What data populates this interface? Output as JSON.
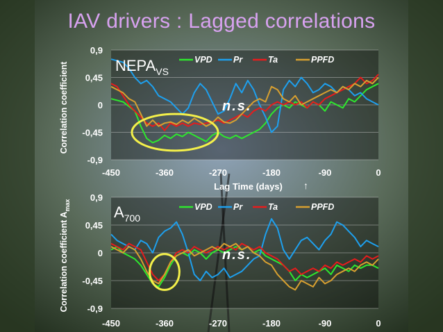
{
  "slide": {
    "title": "IAV drivers : Lagged correlations"
  },
  "colors": {
    "VPD": "#2ee82e",
    "Pr": "#1ea0ee",
    "Ta": "#e81c1c",
    "PPFD": "#d8a030",
    "title": "#d8a2f0",
    "annotation_ellipse": "#f4f04a",
    "text": "#ffffff"
  },
  "chart_data": [
    {
      "type": "line",
      "panel_label": "NEPA",
      "panel_label_sub": "VS",
      "ylabel": "Correlation coefficient",
      "xlabel": "Lag Time (days)",
      "xlabel_arrow": "↑",
      "annotation": "n.s.",
      "ylim": [
        -0.9,
        0.9
      ],
      "yticks": [
        0.9,
        0.45,
        0,
        -0.45,
        -0.9
      ],
      "ytick_labels": [
        "0,9",
        "0,45",
        "0",
        "-0,45",
        "-0,9"
      ],
      "xlim": [
        -450,
        0
      ],
      "xticks": [
        -450,
        -360,
        -270,
        -180,
        -90,
        0
      ],
      "xtick_labels": [
        "-450",
        "-360",
        "-270",
        "-180",
        "-90",
        "0"
      ],
      "grid": true,
      "legend_position": "top",
      "highlight": {
        "shape": "ellipse",
        "x_range": [
          -415,
          -270
        ],
        "y_range": [
          -0.75,
          -0.15
        ]
      },
      "series": [
        {
          "name": "VPD",
          "x": [
            -450,
            -430,
            -410,
            -400,
            -390,
            -380,
            -370,
            -360,
            -350,
            -340,
            -330,
            -320,
            -310,
            -300,
            -290,
            -280,
            -270,
            -260,
            -250,
            -240,
            -230,
            -220,
            -210,
            -200,
            -190,
            -180,
            -170,
            -160,
            -150,
            -140,
            -130,
            -120,
            -110,
            -100,
            -90,
            -80,
            -70,
            -60,
            -50,
            -40,
            -30,
            -20,
            -10,
            0
          ],
          "y": [
            0.1,
            0.05,
            -0.1,
            -0.35,
            -0.55,
            -0.62,
            -0.58,
            -0.5,
            -0.55,
            -0.48,
            -0.52,
            -0.45,
            -0.5,
            -0.55,
            -0.6,
            -0.5,
            -0.45,
            -0.52,
            -0.55,
            -0.5,
            -0.55,
            -0.5,
            -0.45,
            -0.4,
            -0.3,
            -0.15,
            -0.05,
            0,
            -0.05,
            0.05,
            0,
            -0.05,
            0.05,
            0,
            -0.1,
            0.05,
            0,
            -0.05,
            0.1,
            0.05,
            0.15,
            0.25,
            0.3,
            0.35
          ]
        },
        {
          "name": "Pr",
          "x": [
            -450,
            -430,
            -420,
            -410,
            -400,
            -390,
            -380,
            -370,
            -360,
            -350,
            -340,
            -330,
            -320,
            -310,
            -300,
            -290,
            -280,
            -270,
            -260,
            -250,
            -240,
            -230,
            -220,
            -210,
            -200,
            -190,
            -180,
            -170,
            -160,
            -150,
            -140,
            -130,
            -120,
            -110,
            -100,
            -90,
            -80,
            -70,
            -60,
            -50,
            -40,
            -30,
            -20,
            -10,
            0
          ],
          "y": [
            0.75,
            0.7,
            0.6,
            0.45,
            0.35,
            0.4,
            0.3,
            0.15,
            0.1,
            0.05,
            -0.05,
            -0.15,
            -0.05,
            0.2,
            0.35,
            0.25,
            0.05,
            -0.15,
            -0.1,
            0.1,
            0.35,
            0.2,
            0.4,
            0.25,
            0.0,
            -0.2,
            -0.45,
            -0.35,
            0.25,
            0.4,
            0.3,
            0.45,
            0.35,
            0.2,
            0.25,
            0.35,
            0.3,
            0.2,
            0.3,
            0.25,
            0.15,
            0.2,
            0.1,
            0.05,
            0.0
          ]
        },
        {
          "name": "Ta",
          "x": [
            -450,
            -440,
            -430,
            -420,
            -410,
            -400,
            -390,
            -380,
            -370,
            -360,
            -350,
            -340,
            -330,
            -320,
            -310,
            -300,
            -290,
            -280,
            -270,
            -260,
            -250,
            -240,
            -230,
            -220,
            -210,
            -200,
            -190,
            -180,
            -170,
            -160,
            -150,
            -140,
            -130,
            -120,
            -110,
            -100,
            -90,
            -80,
            -70,
            -60,
            -50,
            -40,
            -30,
            -20,
            -10,
            0
          ],
          "y": [
            0.35,
            0.3,
            0.15,
            0.0,
            -0.1,
            -0.2,
            -0.3,
            -0.35,
            -0.3,
            -0.42,
            -0.3,
            -0.35,
            -0.3,
            -0.35,
            -0.3,
            -0.32,
            -0.3,
            -0.28,
            -0.25,
            -0.3,
            -0.25,
            -0.2,
            -0.15,
            -0.2,
            -0.1,
            -0.05,
            -0.1,
            0.0,
            0.05,
            0.0,
            0.05,
            0.0,
            0.05,
            -0.05,
            0.05,
            0.0,
            0.1,
            0.15,
            0.2,
            0.25,
            0.3,
            0.35,
            0.45,
            0.35,
            0.4,
            0.5
          ]
        },
        {
          "name": "PPFD",
          "x": [
            -450,
            -440,
            -430,
            -420,
            -410,
            -400,
            -390,
            -380,
            -370,
            -360,
            -350,
            -340,
            -330,
            -320,
            -310,
            -300,
            -290,
            -280,
            -270,
            -260,
            -250,
            -240,
            -230,
            -220,
            -210,
            -200,
            -190,
            -180,
            -170,
            -160,
            -150,
            -140,
            -130,
            -120,
            -110,
            -100,
            -90,
            -80,
            -70,
            -60,
            -50,
            -40,
            -30,
            -20,
            -10,
            0
          ],
          "y": [
            0.3,
            0.25,
            0.2,
            0.1,
            0.05,
            -0.15,
            -0.35,
            -0.25,
            -0.35,
            -0.3,
            -0.28,
            -0.32,
            -0.25,
            -0.3,
            -0.22,
            -0.28,
            -0.35,
            -0.3,
            -0.2,
            -0.28,
            -0.3,
            -0.25,
            -0.15,
            -0.05,
            0.05,
            0.1,
            0.05,
            0.3,
            0.25,
            0.1,
            0.05,
            0.15,
            0.0,
            0.05,
            0.1,
            0.15,
            0.2,
            0.25,
            0.2,
            0.3,
            0.25,
            0.35,
            0.3,
            0.4,
            0.35,
            0.45
          ]
        }
      ]
    },
    {
      "type": "line",
      "panel_label": "A",
      "panel_label_sub": "700",
      "ylabel": "Correlation coefficient A",
      "ylabel_sub": "max",
      "annotation": "n.s.",
      "ylim": [
        -0.9,
        0.9
      ],
      "yticks": [
        0.9,
        0.45,
        0,
        -0.45,
        -0.9
      ],
      "ytick_labels": [
        "0,9",
        "0,45",
        "0",
        "-0,45",
        "-0,9"
      ],
      "xlim": [
        -450,
        0
      ],
      "xticks": [
        -450,
        -360,
        -270,
        -180,
        -90,
        0
      ],
      "xtick_labels": [
        "-450",
        "-360",
        "-270",
        "-180",
        "-90",
        "0"
      ],
      "grid": true,
      "legend_position": "top",
      "highlight": {
        "shape": "ellipse",
        "x_range": [
          -385,
          -335
        ],
        "y_range": [
          -0.6,
          -0.02
        ]
      },
      "series": [
        {
          "name": "VPD",
          "x": [
            -450,
            -440,
            -430,
            -420,
            -410,
            -400,
            -390,
            -380,
            -370,
            -360,
            -350,
            -340,
            -330,
            -320,
            -310,
            -300,
            -290,
            -280,
            -270,
            -260,
            -250,
            -240,
            -230,
            -220,
            -210,
            -200,
            -190,
            -180,
            -170,
            -160,
            -150,
            -140,
            -130,
            -120,
            -110,
            -100,
            -90,
            -80,
            -70,
            -60,
            -50,
            -40,
            -30,
            -20,
            -10,
            0
          ],
          "y": [
            0.05,
            0.1,
            0.0,
            -0.05,
            -0.1,
            -0.2,
            -0.35,
            -0.5,
            -0.55,
            -0.4,
            -0.2,
            -0.05,
            0.0,
            -0.05,
            0.05,
            0.0,
            -0.1,
            0.0,
            0.05,
            0.0,
            0.05,
            0.1,
            0.05,
            0.1,
            0.0,
            0.05,
            -0.05,
            -0.1,
            -0.15,
            -0.2,
            -0.3,
            -0.45,
            -0.35,
            -0.4,
            -0.35,
            -0.3,
            -0.25,
            -0.35,
            -0.2,
            -0.25,
            -0.3,
            -0.2,
            -0.25,
            -0.2,
            -0.2,
            -0.25
          ]
        },
        {
          "name": "Pr",
          "x": [
            -450,
            -440,
            -430,
            -420,
            -410,
            -400,
            -390,
            -380,
            -370,
            -360,
            -350,
            -340,
            -330,
            -320,
            -310,
            -300,
            -290,
            -280,
            -270,
            -260,
            -250,
            -240,
            -230,
            -220,
            -210,
            -200,
            -190,
            -180,
            -170,
            -160,
            -150,
            -140,
            -130,
            -120,
            -110,
            -100,
            -90,
            -80,
            -70,
            -60,
            -50,
            -40,
            -30,
            -20,
            -10,
            0
          ],
          "y": [
            0.3,
            0.2,
            0.15,
            0.1,
            0.05,
            0.2,
            0.15,
            0.0,
            0.25,
            0.35,
            0.4,
            0.5,
            0.3,
            0.0,
            -0.35,
            -0.45,
            -0.3,
            -0.4,
            -0.35,
            -0.25,
            -0.4,
            -0.35,
            -0.3,
            -0.2,
            -0.1,
            -0.05,
            0.3,
            0.55,
            0.4,
            0.05,
            -0.1,
            0.05,
            0.2,
            0.25,
            0.15,
            0.05,
            0.2,
            0.3,
            0.5,
            0.45,
            0.35,
            0.25,
            0.1,
            0.2,
            0.15,
            0.1
          ]
        },
        {
          "name": "Ta",
          "x": [
            -450,
            -440,
            -430,
            -420,
            -410,
            -400,
            -390,
            -380,
            -370,
            -360,
            -350,
            -340,
            -330,
            -320,
            -310,
            -300,
            -290,
            -280,
            -270,
            -260,
            -250,
            -240,
            -230,
            -220,
            -210,
            -200,
            -190,
            -180,
            -170,
            -160,
            -150,
            -140,
            -130,
            -120,
            -110,
            -100,
            -90,
            -80,
            -70,
            -60,
            -50,
            -40,
            -30,
            -20,
            -10,
            0
          ],
          "y": [
            0.15,
            0.1,
            0.05,
            0.15,
            0.1,
            0.05,
            -0.15,
            -0.35,
            -0.45,
            -0.35,
            -0.15,
            0.0,
            0.05,
            0.0,
            0.1,
            0.05,
            0.0,
            0.05,
            0.1,
            0.05,
            0.1,
            0.05,
            0.15,
            0.1,
            0.05,
            0.1,
            0.0,
            -0.05,
            -0.1,
            -0.2,
            -0.3,
            -0.25,
            -0.35,
            -0.3,
            -0.25,
            -0.3,
            -0.2,
            -0.25,
            -0.15,
            -0.2,
            -0.15,
            -0.1,
            -0.15,
            -0.05,
            -0.1,
            -0.05
          ]
        },
        {
          "name": "PPFD",
          "x": [
            -450,
            -440,
            -430,
            -420,
            -410,
            -400,
            -390,
            -380,
            -370,
            -360,
            -350,
            -340,
            -330,
            -320,
            -310,
            -300,
            -290,
            -280,
            -270,
            -260,
            -250,
            -240,
            -230,
            -220,
            -210,
            -200,
            -190,
            -180,
            -170,
            -160,
            -150,
            -140,
            -130,
            -120,
            -110,
            -100,
            -90,
            -80,
            -70,
            -60,
            -50,
            -40,
            -30,
            -20,
            -10,
            0
          ],
          "y": [
            0.1,
            0.05,
            0.0,
            0.1,
            0.05,
            -0.1,
            -0.3,
            -0.45,
            -0.5,
            -0.35,
            -0.15,
            -0.05,
            0.0,
            0.05,
            -0.05,
            0.0,
            0.05,
            0.1,
            0.05,
            0.15,
            0.1,
            0.15,
            0.05,
            0.1,
            0.0,
            -0.05,
            -0.15,
            -0.2,
            -0.35,
            -0.45,
            -0.55,
            -0.6,
            -0.45,
            -0.5,
            -0.55,
            -0.4,
            -0.5,
            -0.45,
            -0.35,
            -0.3,
            -0.25,
            -0.3,
            -0.2,
            -0.15,
            -0.2,
            -0.1
          ]
        }
      ]
    }
  ]
}
